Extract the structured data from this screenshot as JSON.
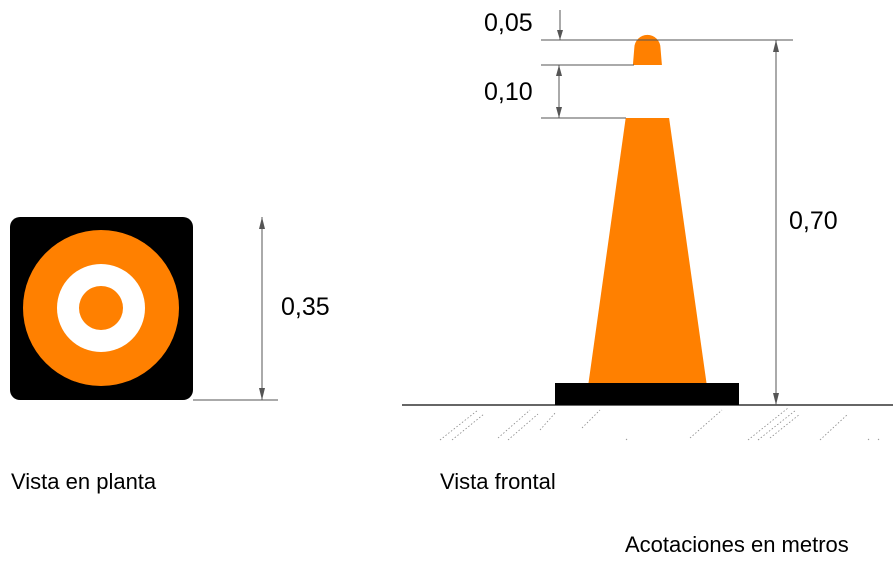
{
  "plan_view": {
    "caption": "Vista en planta",
    "dimension_width": "0,35"
  },
  "front_view": {
    "caption": "Vista frontal",
    "dimension_tip": "0,05",
    "dimension_band": "0,10",
    "dimension_height": "0,70"
  },
  "note": "Acotaciones en metros",
  "colors": {
    "cone_orange": "#ff8000",
    "band_white": "#ffffff",
    "base_black": "#000000",
    "dimension_line": "#555555"
  }
}
